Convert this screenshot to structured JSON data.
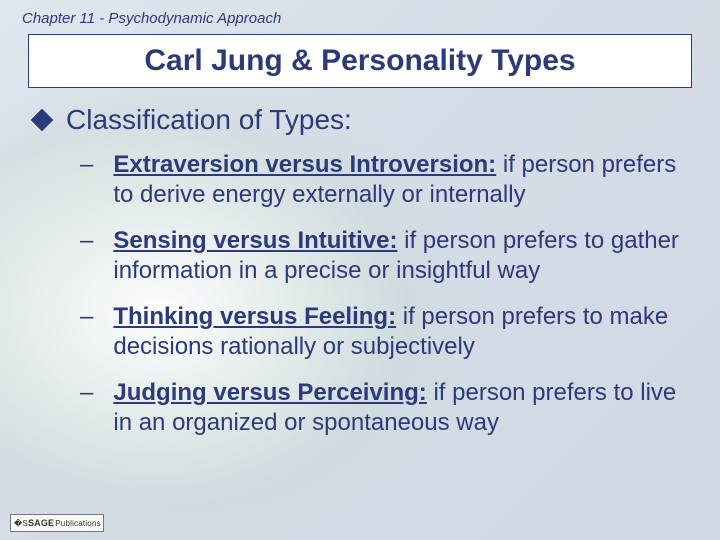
{
  "colors": {
    "text_primary": "#2b3a7a",
    "title_border": "#2b3a7a",
    "title_bg": "#ffffff",
    "bg_gradient_start": "#e0e6ee",
    "bg_gradient_end": "#cfd8e3",
    "radial_highlight": "#ffffff"
  },
  "typography": {
    "font_family": "Arial",
    "chapter_size_pt": 11,
    "title_size_pt": 22,
    "heading_size_pt": 21,
    "body_size_pt": 18
  },
  "chapter": "Chapter 11 - Psychodynamic Approach",
  "title": "Carl Jung & Personality Types",
  "heading": "Classification of Types:",
  "items": [
    {
      "label": "Extraversion versus Introversion:",
      "desc": " if person prefers to derive energy externally or internally"
    },
    {
      "label": "Sensing versus Intuitive:",
      "desc": " if person prefers to gather information in a precise or insightful way"
    },
    {
      "label": "Thinking versus Feeling:",
      "desc": " if person prefers to make decisions rationally or subjectively"
    },
    {
      "label": "Judging versus Perceiving:",
      "desc": " if person prefers to live in an organized or spontaneous way"
    }
  ],
  "footer": {
    "brand": "SAGE",
    "suffix": "Publications"
  }
}
